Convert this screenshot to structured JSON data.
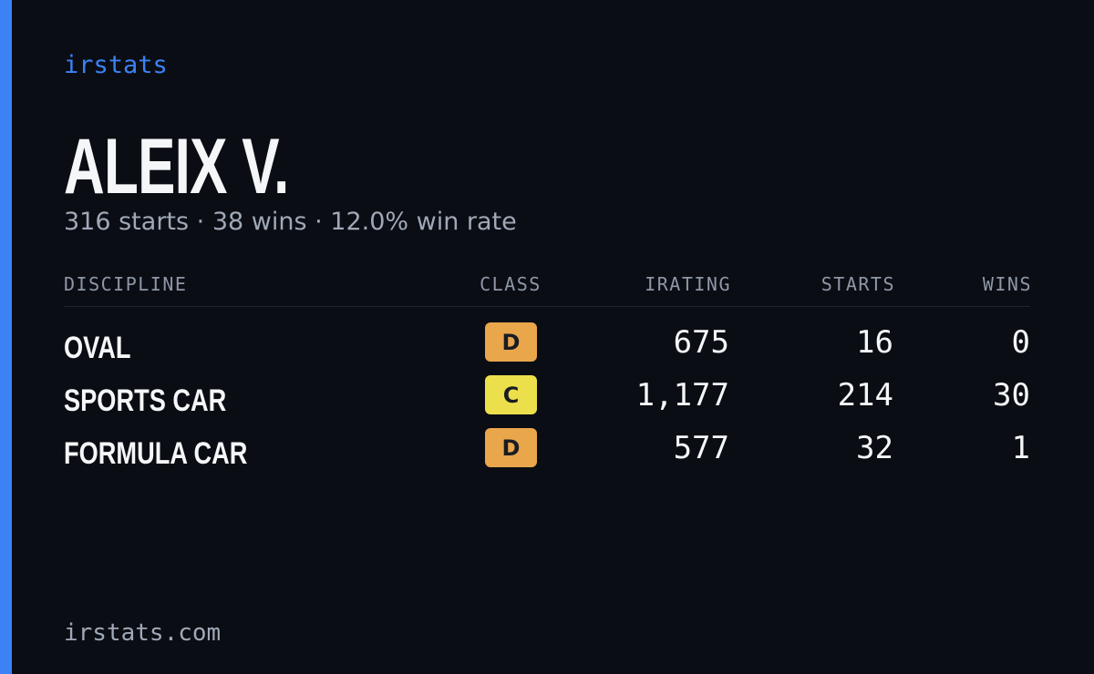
{
  "brand": "irstats",
  "header": {
    "name": "ALEIX V.",
    "summary": "316 starts · 38 wins · 12.0% win rate"
  },
  "table": {
    "columns": [
      "DISCIPLINE",
      "CLASS",
      "IRATING",
      "STARTS",
      "WINS"
    ],
    "rows": [
      {
        "discipline": "OVAL",
        "class": "D",
        "class_color": "#e9a64b",
        "irating": "675",
        "starts": "16",
        "wins": "0"
      },
      {
        "discipline": "SPORTS CAR",
        "class": "C",
        "class_color": "#ebe04c",
        "irating": "1,177",
        "starts": "214",
        "wins": "30"
      },
      {
        "discipline": "FORMULA CAR",
        "class": "D",
        "class_color": "#e9a64b",
        "irating": "577",
        "starts": "32",
        "wins": "1"
      }
    ]
  },
  "footer": {
    "url": "irstats.com"
  }
}
